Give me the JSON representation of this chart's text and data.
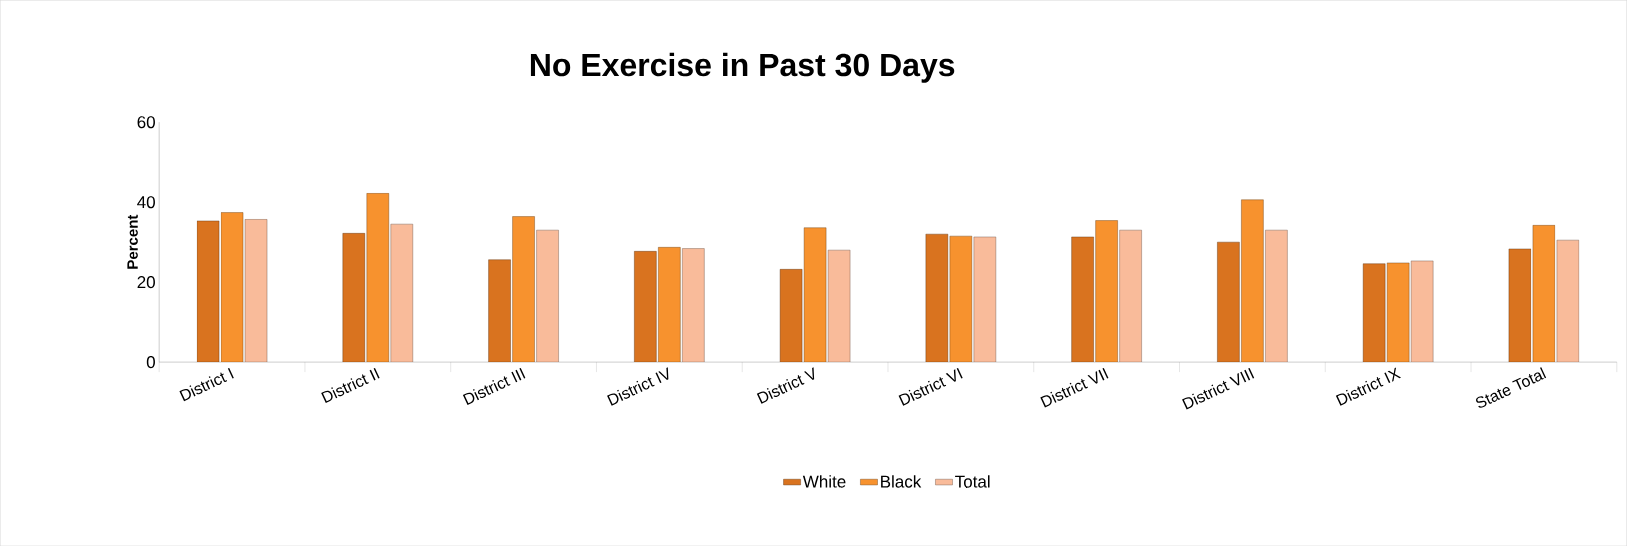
{
  "chart_data": {
    "type": "bar",
    "title": "No Exercise in Past 30 Days",
    "ylabel": "Percent",
    "categories": [
      "District I",
      "District II",
      "District III",
      "District IV",
      "District V",
      "District VI",
      "District VII",
      "District VIII",
      "District IX",
      "State Total"
    ],
    "series": [
      {
        "name": "White",
        "color": "#d9731f",
        "values": [
          35.3,
          32.2,
          25.6,
          27.7,
          23.2,
          32.0,
          31.3,
          30.0,
          24.6,
          28.3
        ]
      },
      {
        "name": "Black",
        "color": "#f7922e",
        "values": [
          37.4,
          42.2,
          36.4,
          28.7,
          33.6,
          31.5,
          35.4,
          40.6,
          24.8,
          34.2
        ]
      },
      {
        "name": "Total",
        "color": "#f9bb9a",
        "values": [
          35.7,
          34.5,
          33.0,
          28.4,
          28.0,
          31.3,
          33.0,
          33.0,
          25.3,
          30.5
        ]
      }
    ],
    "ylim": [
      0,
      60
    ],
    "yticks": [
      0,
      20,
      40,
      60
    ],
    "grid": false,
    "legend": "bottom"
  }
}
